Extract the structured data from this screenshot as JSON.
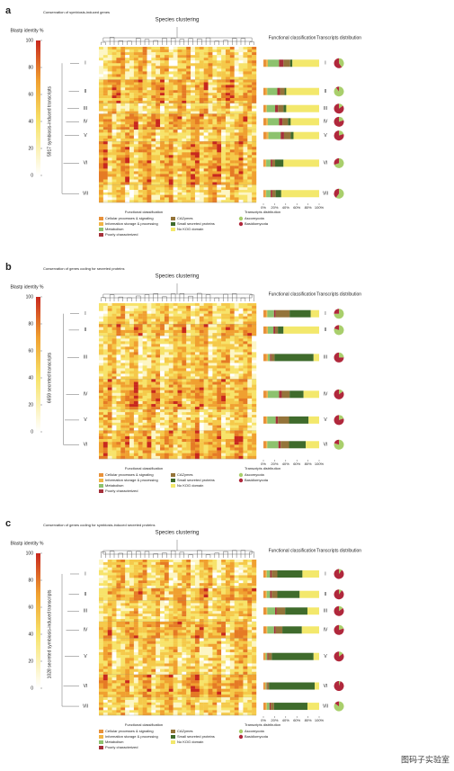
{
  "legend": {
    "functional_title": "Functional classification",
    "transcripts_title": "Transcripts distribution",
    "functional": [
      {
        "name": "Cellular processes & signaling",
        "color": "#e8913a"
      },
      {
        "name": "Information storage & processing",
        "color": "#f2b545"
      },
      {
        "name": "Metabolism",
        "color": "#8dc26e"
      },
      {
        "name": "Poorly characterized",
        "color": "#a5303a"
      },
      {
        "name": "CAZymes",
        "color": "#94743a"
      },
      {
        "name": "Small secreted proteins",
        "color": "#3f6b2c"
      },
      {
        "name": "No KOG domain",
        "color": "#f3e86c"
      }
    ],
    "transcripts": [
      {
        "name": "Ascomycota",
        "color": "#a9cf6c"
      },
      {
        "name": "Basidiomycota",
        "color": "#b0283c"
      }
    ]
  },
  "panels": [
    {
      "label": "a",
      "subtitle": "Conservation of symbiosis-induced genes",
      "title": "Species clustering",
      "colorbar_title": "Blastp identity %",
      "colorbar_lim": [
        0,
        100
      ],
      "colorbar_ticks": [
        0,
        20,
        40,
        60,
        80,
        100
      ],
      "row_axis": "5917 symbiosis-induced transcripts",
      "col_headers": [
        "Functional classification",
        "Transcripts distribution"
      ],
      "bar_ticks": [
        {
          "value": 0,
          "label": "0%"
        },
        {
          "value": 20,
          "label": "20%"
        },
        {
          "value": 40,
          "label": "40%"
        },
        {
          "value": 60,
          "label": "60%"
        },
        {
          "value": 80,
          "label": "80%"
        },
        {
          "value": 100,
          "label": "100%"
        }
      ],
      "clusters": [
        {
          "name": "I",
          "size": 1250,
          "functional": [
            5,
            3,
            20,
            8,
            12,
            4,
            48
          ],
          "ascomycota": 40,
          "basidiomycota": 60
        },
        {
          "name": "II",
          "size": 900,
          "functional": [
            4,
            3,
            18,
            5,
            8,
            3,
            59
          ],
          "ascomycota": 90,
          "basidiomycota": 10
        },
        {
          "name": "III",
          "size": 400,
          "functional": [
            4,
            2,
            15,
            5,
            10,
            5,
            59
          ],
          "ascomycota": 15,
          "basidiomycota": 85
        },
        {
          "name": "IV",
          "size": 600,
          "functional": [
            5,
            3,
            20,
            6,
            10,
            5,
            51
          ],
          "ascomycota": 20,
          "basidiomycota": 80
        },
        {
          "name": "V",
          "size": 450,
          "functional": [
            6,
            3,
            22,
            6,
            12,
            5,
            46
          ],
          "ascomycota": 20,
          "basidiomycota": 80
        },
        {
          "name": "VI",
          "size": 1650,
          "functional": [
            3,
            2,
            8,
            3,
            5,
            15,
            64
          ],
          "ascomycota": 70,
          "basidiomycota": 30
        },
        {
          "name": "VII",
          "size": 667,
          "functional": [
            3,
            2,
            8,
            3,
            6,
            10,
            68
          ],
          "ascomycota": 60,
          "basidiomycota": 40
        }
      ]
    },
    {
      "label": "b",
      "subtitle": "Conservation of genes coding for secreted proteins",
      "title": "Species clustering",
      "colorbar_title": "Blastp identity %",
      "colorbar_lim": [
        0,
        100
      ],
      "colorbar_ticks": [
        0,
        20,
        40,
        60,
        80,
        100
      ],
      "row_axis": "6659 secreted transcripts",
      "col_headers": [
        "Functional classification",
        "Transcripts distribution"
      ],
      "bar_ticks": [
        {
          "value": 0,
          "label": "0%"
        },
        {
          "value": 20,
          "label": "20%"
        },
        {
          "value": 40,
          "label": "40%"
        },
        {
          "value": 60,
          "label": "60%"
        },
        {
          "value": 80,
          "label": "80%"
        },
        {
          "value": 100,
          "label": "100%"
        }
      ],
      "clusters": [
        {
          "name": "I",
          "size": 900,
          "functional": [
            5,
            2,
            12,
            3,
            25,
            38,
            15
          ],
          "ascomycota": 75,
          "basidiomycota": 25
        },
        {
          "name": "II",
          "size": 500,
          "functional": [
            6,
            2,
            10,
            3,
            5,
            10,
            64
          ],
          "ascomycota": 80,
          "basidiomycota": 20
        },
        {
          "name": "III",
          "size": 1850,
          "functional": [
            6,
            2,
            4,
            2,
            6,
            70,
            10
          ],
          "ascomycota": 25,
          "basidiomycota": 75
        },
        {
          "name": "IV",
          "size": 1300,
          "functional": [
            6,
            2,
            20,
            5,
            14,
            25,
            28
          ],
          "ascomycota": 15,
          "basidiomycota": 85
        },
        {
          "name": "V",
          "size": 900,
          "functional": [
            5,
            2,
            15,
            4,
            20,
            35,
            19
          ],
          "ascomycota": 20,
          "basidiomycota": 80
        },
        {
          "name": "VI",
          "size": 1209,
          "functional": [
            5,
            2,
            20,
            4,
            15,
            30,
            24
          ],
          "ascomycota": 80,
          "basidiomycota": 20
        }
      ]
    },
    {
      "label": "c",
      "subtitle": "Conservation of genes coding for symbiosis-induced secreted proteins",
      "title": "Species clustering",
      "colorbar_title": "Blastp identity %",
      "colorbar_lim": [
        0,
        100
      ],
      "colorbar_ticks": [
        0,
        20,
        40,
        60,
        80,
        100
      ],
      "row_axis": "1028 secreted symbiosis-induced transcripts",
      "col_headers": [
        "Functional classification",
        "Transcripts distribution"
      ],
      "bar_ticks": [
        {
          "value": 0,
          "label": "0%"
        },
        {
          "value": 20,
          "label": "20%"
        },
        {
          "value": 40,
          "label": "40%"
        },
        {
          "value": 60,
          "label": "60%"
        },
        {
          "value": 80,
          "label": "80%"
        },
        {
          "value": 100,
          "label": "100%"
        }
      ],
      "clusters": [
        {
          "name": "I",
          "size": 190,
          "functional": [
            4,
            2,
            6,
            3,
            10,
            45,
            30
          ],
          "ascomycota": 10,
          "basidiomycota": 90
        },
        {
          "name": "II",
          "size": 80,
          "functional": [
            4,
            2,
            6,
            3,
            10,
            40,
            35
          ],
          "ascomycota": 10,
          "basidiomycota": 90
        },
        {
          "name": "III",
          "size": 140,
          "functional": [
            5,
            2,
            14,
            3,
            15,
            40,
            21
          ],
          "ascomycota": 15,
          "basidiomycota": 85
        },
        {
          "name": "IV",
          "size": 110,
          "functional": [
            5,
            2,
            12,
            3,
            12,
            35,
            31
          ],
          "ascomycota": 20,
          "basidiomycota": 80
        },
        {
          "name": "V",
          "size": 240,
          "functional": [
            3,
            1,
            3,
            2,
            6,
            75,
            10
          ],
          "ascomycota": 15,
          "basidiomycota": 85
        },
        {
          "name": "VI",
          "size": 150,
          "functional": [
            3,
            1,
            2,
            1,
            3,
            82,
            8
          ],
          "ascomycota": 5,
          "basidiomycota": 95
        },
        {
          "name": "VII",
          "size": 118,
          "functional": [
            4,
            2,
            5,
            2,
            6,
            60,
            21
          ],
          "ascomycota": 85,
          "basidiomycota": 15
        }
      ]
    }
  ],
  "watermark": "图码子实验室"
}
